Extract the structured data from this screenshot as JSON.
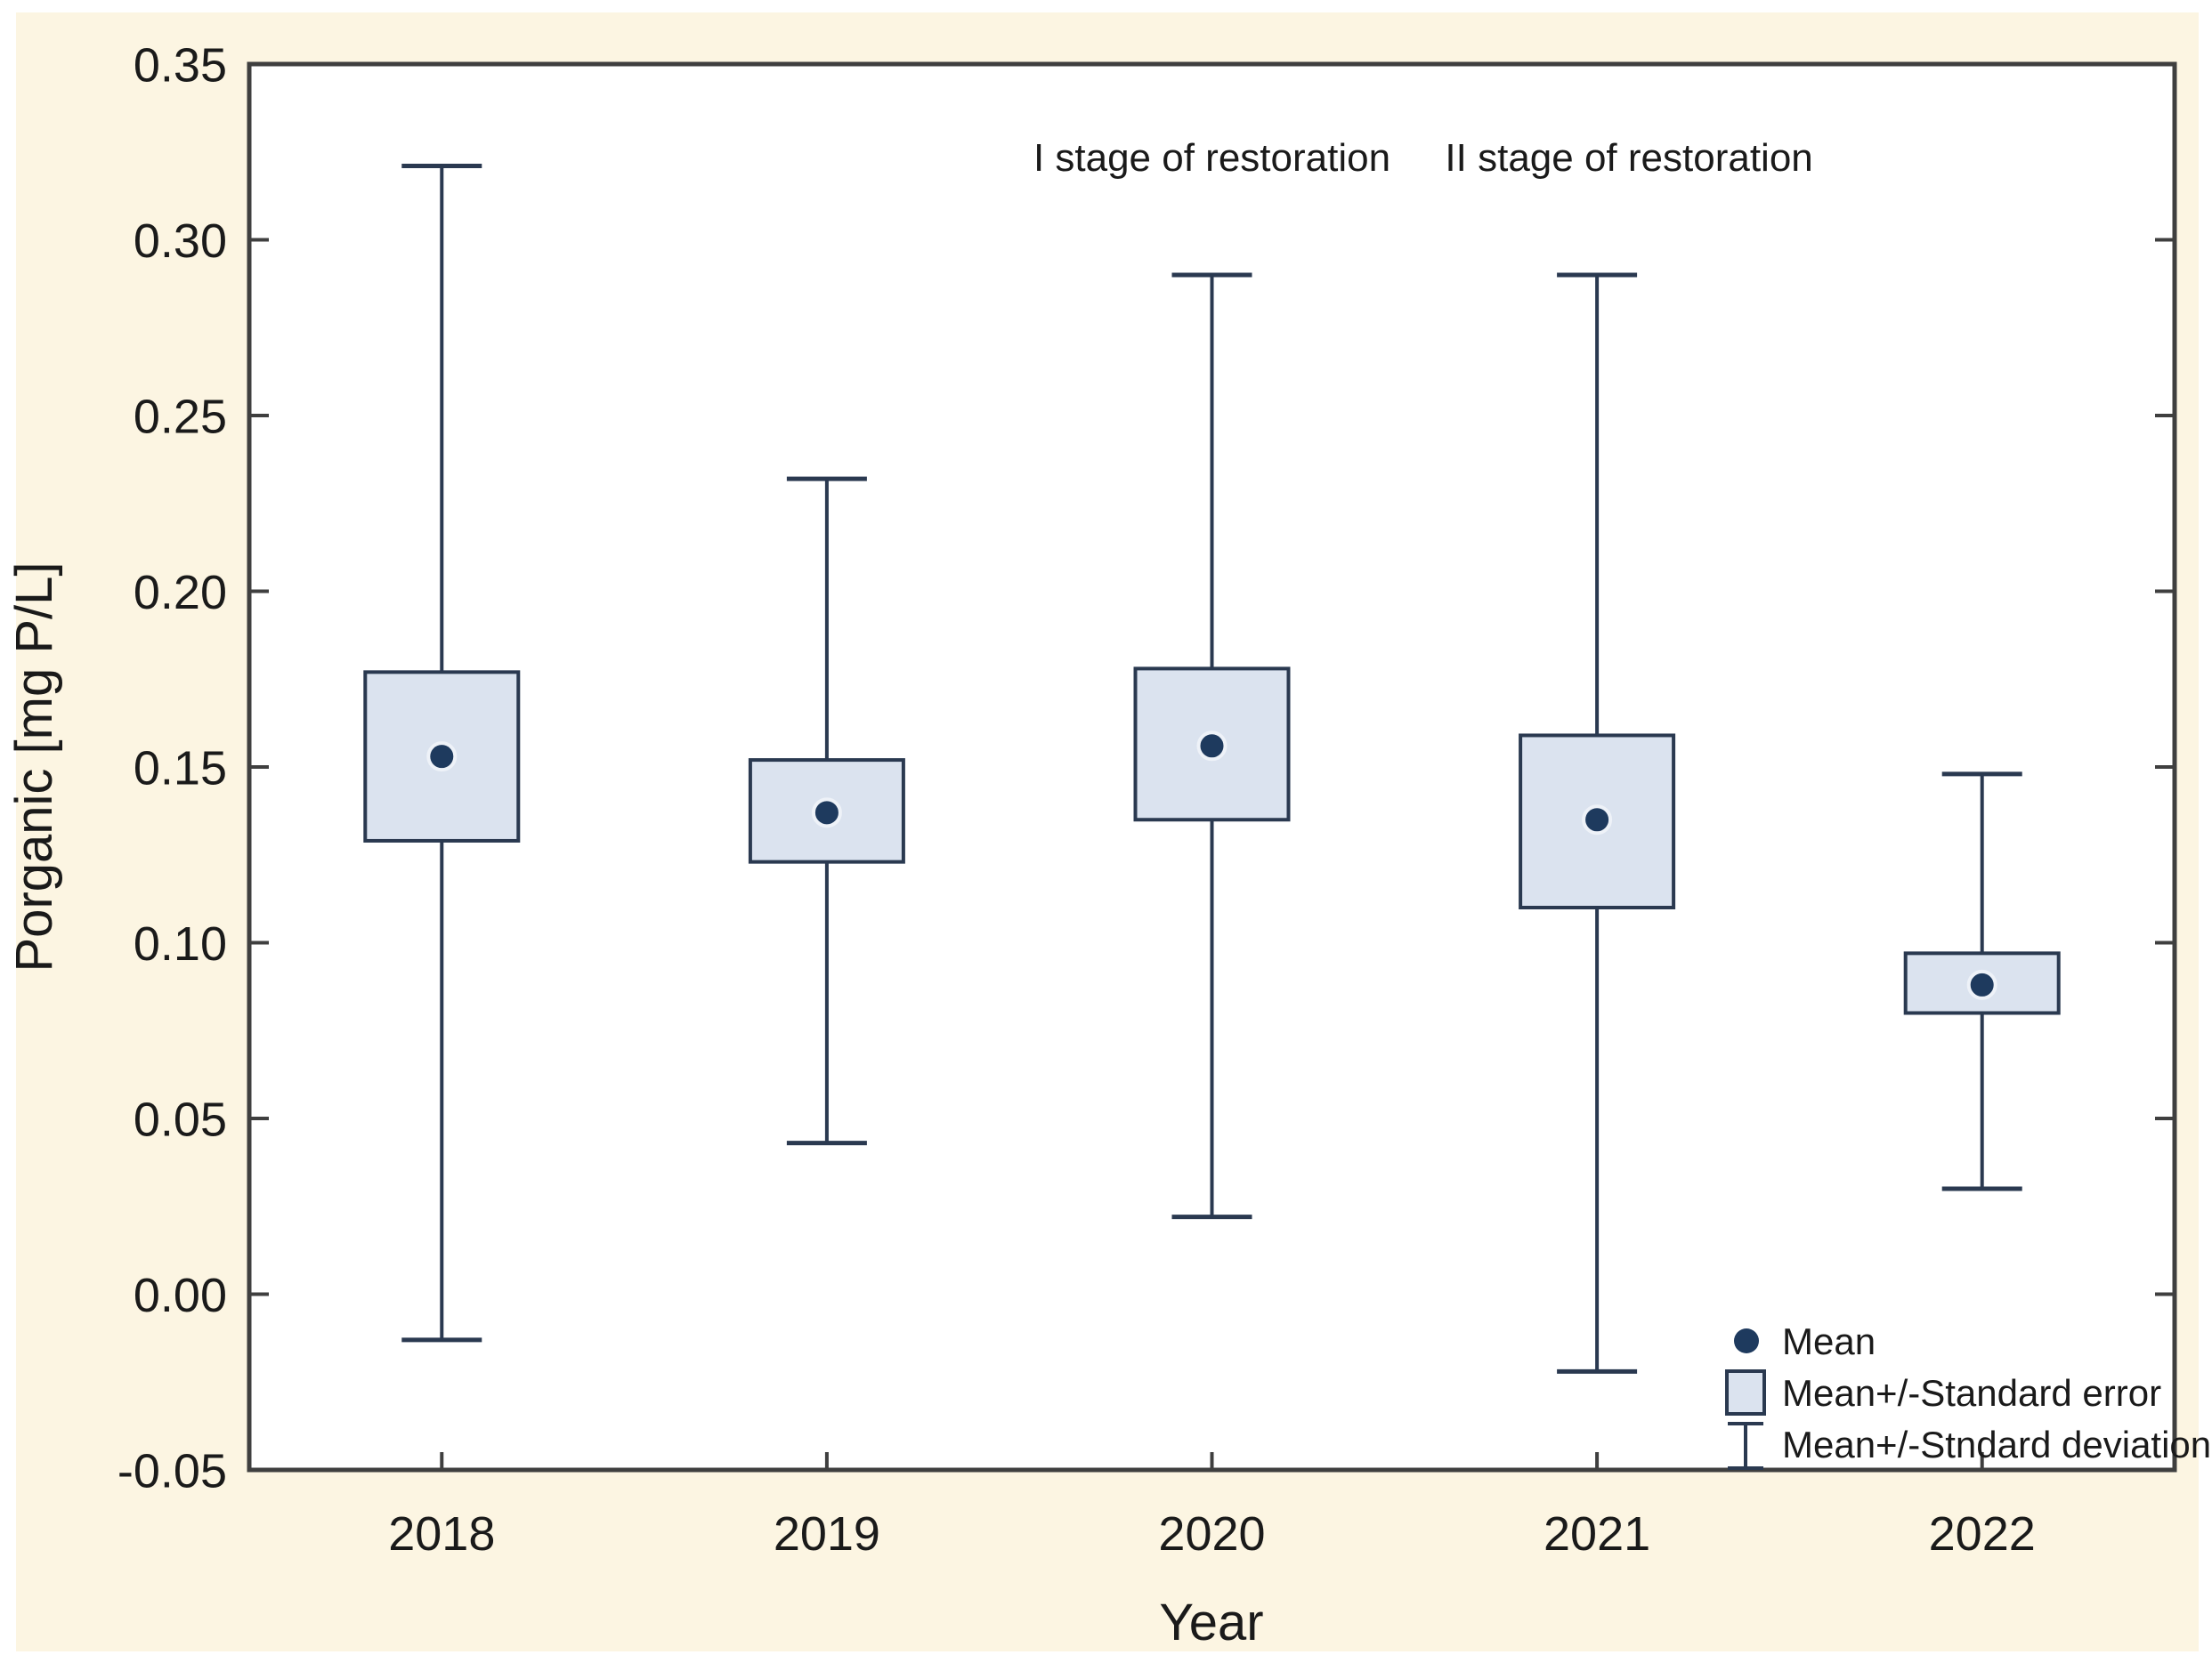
{
  "chart_data": {
    "type": "box",
    "title": "",
    "xlabel": "Year",
    "ylabel": "Porganic [mg P/L]",
    "ylim": [
      -0.05,
      0.35
    ],
    "ytick_step": 0.05,
    "ytick_labels": [
      "0.35",
      "0.30",
      "0.25",
      "0.20",
      "0.15",
      "0.10",
      "0.05",
      "0.00",
      "-0.05"
    ],
    "categories": [
      "2018",
      "2019",
      "2020",
      "2021",
      "2022"
    ],
    "series": [
      {
        "category": "2018",
        "mean": 0.153,
        "se_low": 0.129,
        "se_high": 0.177,
        "sd_low": -0.013,
        "sd_high": 0.321
      },
      {
        "category": "2019",
        "mean": 0.137,
        "se_low": 0.123,
        "se_high": 0.152,
        "sd_low": 0.043,
        "sd_high": 0.232
      },
      {
        "category": "2020",
        "mean": 0.156,
        "se_low": 0.135,
        "se_high": 0.178,
        "sd_low": 0.022,
        "sd_high": 0.29
      },
      {
        "category": "2021",
        "mean": 0.135,
        "se_low": 0.11,
        "se_high": 0.159,
        "sd_low": -0.022,
        "sd_high": 0.29
      },
      {
        "category": "2022",
        "mean": 0.088,
        "se_low": 0.08,
        "se_high": 0.097,
        "sd_low": 0.03,
        "sd_high": 0.148
      }
    ],
    "annotations": [
      {
        "text": "I stage of restoration",
        "category_index": 2,
        "offset_x": 0
      },
      {
        "text": "II stage of restoration",
        "category_index": 3,
        "offset_x": 36
      }
    ],
    "legend": [
      {
        "label": "Mean",
        "marker": "dot"
      },
      {
        "label": "Mean+/-Standard error",
        "marker": "box"
      },
      {
        "label": "Mean+/-Stndard deviation",
        "marker": "whisker"
      }
    ],
    "colors": {
      "page_background": "#fcf5e2",
      "plot_background": "#ffffff",
      "frame": "#3f3f3f",
      "box_fill": "#dbe3ef",
      "box_border": "#2a3950",
      "whisker": "#2a3950",
      "mean_dot": "#1e3a5e",
      "text": "#1a1a1a"
    }
  }
}
